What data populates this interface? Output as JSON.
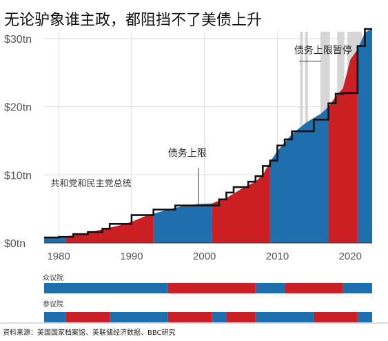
{
  "title": "无论驴象谁主政，都阻挡不了美债上升",
  "source": "资料来源：美国国家档案馆、美联储经济数据、BBC研究",
  "chart_data": {
    "type": "area",
    "title": "无论驴象谁主政，都阻挡不了美债上升",
    "xlim": [
      1978,
      2023
    ],
    "ylim": [
      0,
      31
    ],
    "x_ticks": [
      1980,
      1990,
      2000,
      2010,
      2020
    ],
    "x_tick_labels": [
      "1980",
      "1990",
      "2000",
      "2010",
      "2020"
    ],
    "y_ticks": [
      0,
      10,
      20,
      30
    ],
    "y_tick_labels": [
      "$0tn",
      "$10tn",
      "$20tn",
      "$30tn"
    ],
    "grid": true,
    "colors": {
      "democrat": "#1f6fae",
      "republican": "#cc1f24",
      "ceiling": "#111111",
      "suspension": "#d6d6d6",
      "grid": "#dddddd"
    },
    "debt": {
      "x": [
        1978,
        1980,
        1982,
        1984,
        1986,
        1988,
        1990,
        1992,
        1993,
        1995,
        1997,
        1999,
        2001,
        2003,
        2005,
        2007,
        2008,
        2009,
        2010,
        2012,
        2014,
        2016,
        2017,
        2018,
        2019,
        2020,
        2021,
        2022,
        2023
      ],
      "y": [
        0.75,
        0.85,
        1.1,
        1.5,
        2.0,
        2.5,
        3.1,
        4.0,
        4.3,
        4.9,
        5.4,
        5.7,
        5.8,
        6.6,
        7.9,
        9.0,
        10.0,
        11.9,
        13.5,
        16.0,
        17.7,
        19.0,
        20.0,
        21.5,
        22.7,
        26.9,
        28.4,
        30.9,
        31.4
      ]
    },
    "presidency": [
      {
        "start": 1978,
        "end": 1981,
        "party": "democrat"
      },
      {
        "start": 1981,
        "end": 1993,
        "party": "republican"
      },
      {
        "start": 1993,
        "end": 2001,
        "party": "democrat"
      },
      {
        "start": 2001,
        "end": 2009,
        "party": "republican"
      },
      {
        "start": 2009,
        "end": 2017,
        "party": "democrat"
      },
      {
        "start": 2017,
        "end": 2021,
        "party": "republican"
      },
      {
        "start": 2021,
        "end": 2023,
        "party": "democrat"
      }
    ],
    "debt_ceiling": {
      "x": [
        1978,
        1980,
        1982,
        1984,
        1986,
        1987,
        1990,
        1993,
        1996,
        2002,
        2003,
        2004,
        2006,
        2007,
        2008,
        2009,
        2010,
        2011,
        2012,
        2015,
        2017,
        2018,
        2019,
        2021,
        2022,
        2023
      ],
      "y": [
        0.8,
        0.9,
        1.3,
        1.6,
        2.1,
        2.8,
        4.1,
        4.9,
        5.5,
        6.4,
        7.4,
        8.2,
        9.0,
        9.8,
        11.3,
        12.1,
        14.3,
        15.2,
        16.4,
        18.1,
        20.5,
        21.9,
        22.0,
        28.9,
        31.4,
        31.4
      ]
    },
    "suspensions": [
      {
        "start": 2013.1,
        "end": 2013.5
      },
      {
        "start": 2013.8,
        "end": 2014.2
      },
      {
        "start": 2015.9,
        "end": 2017.2
      },
      {
        "start": 2018.2,
        "end": 2019.2
      },
      {
        "start": 2019.6,
        "end": 2021.6
      }
    ],
    "annotations": [
      {
        "text": "债务上限暂停",
        "x": 2012.3,
        "y": 27.8
      },
      {
        "text": "债务上限",
        "x": 1995.0,
        "y": 12.7
      },
      {
        "text": "共和党和民主党总统",
        "x": 1978.9,
        "y": 8.3
      }
    ],
    "house": {
      "label": "众议院",
      "segments": [
        {
          "start": 1978,
          "end": 1995,
          "party": "democrat"
        },
        {
          "start": 1995,
          "end": 2007,
          "party": "republican"
        },
        {
          "start": 2007,
          "end": 2011,
          "party": "democrat"
        },
        {
          "start": 2011,
          "end": 2019,
          "party": "republican"
        },
        {
          "start": 2019,
          "end": 2023,
          "party": "democrat"
        }
      ]
    },
    "senate": {
      "label": "参议院",
      "segments": [
        {
          "start": 1978,
          "end": 1981,
          "party": "democrat"
        },
        {
          "start": 1981,
          "end": 1987,
          "party": "republican"
        },
        {
          "start": 1987,
          "end": 1995,
          "party": "democrat"
        },
        {
          "start": 1995,
          "end": 2001,
          "party": "republican"
        },
        {
          "start": 2001,
          "end": 2003,
          "party": "democrat"
        },
        {
          "start": 2003,
          "end": 2007,
          "party": "republican"
        },
        {
          "start": 2007,
          "end": 2015,
          "party": "democrat"
        },
        {
          "start": 2015,
          "end": 2021,
          "party": "republican"
        },
        {
          "start": 2021,
          "end": 2023,
          "party": "democrat"
        }
      ]
    }
  }
}
